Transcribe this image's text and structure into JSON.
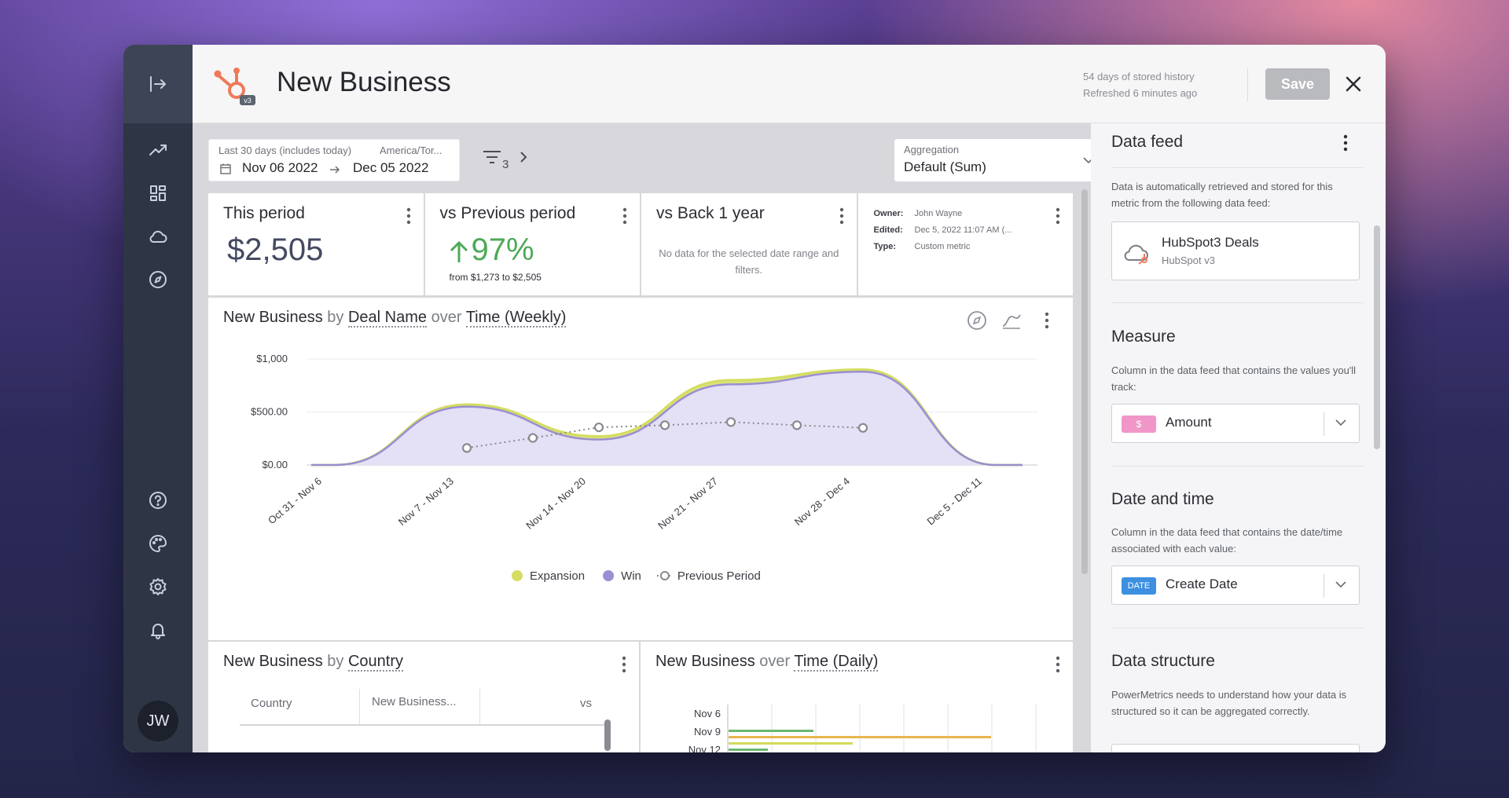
{
  "header": {
    "title": "New Business",
    "logo_badge": "v3",
    "history_line1": "54 days of stored history",
    "history_line2": "Refreshed 6 minutes ago",
    "save_label": "Save"
  },
  "user": {
    "initials": "JW"
  },
  "nav": {
    "top_icons": [
      "trend-icon",
      "dashboard-icon",
      "cloud-icon",
      "compass-icon"
    ],
    "bottom_icons": [
      "help-icon",
      "palette-icon",
      "settings-icon",
      "bell-icon"
    ]
  },
  "toolbar": {
    "date_label": "Last 30 days (includes today)",
    "timezone": "America/Tor...",
    "start_date": "Nov 06 2022",
    "end_date": "Dec 05 2022",
    "filter_count": "3",
    "aggregation_label": "Aggregation",
    "aggregation_value": "Default (Sum)"
  },
  "cards": {
    "this_period": {
      "title": "This period",
      "value": "$2,505"
    },
    "vs_previous": {
      "title": "vs Previous period",
      "value": "97%",
      "detail": "from $1,273 to $2,505"
    },
    "vs_year": {
      "title": "vs Back 1 year",
      "message": "No data for the selected date range and filters."
    },
    "meta": {
      "owner_label": "Owner:",
      "owner": "John Wayne",
      "edited_label": "Edited:",
      "edited": "Dec 5, 2022 11:07 AM (...",
      "type_label": "Type:",
      "type": "Custom metric"
    }
  },
  "main_chart": {
    "title_metric": "New Business",
    "title_by": "by",
    "title_dimension": "Deal Name",
    "title_over": "over",
    "title_time": "Time (Weekly)"
  },
  "chart_data": {
    "type": "area",
    "x": [
      "Oct 31 - Nov 6",
      "Nov 7 - Nov 13",
      "Nov 14 - Nov 20",
      "Nov 21 - Nov 27",
      "Nov 28 - Dec 4",
      "Dec 5 - Dec 11"
    ],
    "yticks": [
      "$1,000",
      "$500.00",
      "$0.00"
    ],
    "ylim": [
      0,
      1000
    ],
    "series": [
      {
        "name": "Expansion",
        "color": "#d5dd62",
        "values": [
          0,
          570,
          270,
          800,
          900,
          0
        ]
      },
      {
        "name": "Win",
        "color": "#9a8fd3",
        "values": [
          0,
          550,
          240,
          760,
          880,
          0
        ]
      }
    ],
    "previous_period": {
      "name": "Previous Period",
      "color": "#8a8a8f",
      "x_index": [
        1,
        1.5,
        2,
        2.5,
        3,
        3.5,
        4
      ],
      "values": [
        160,
        255,
        355,
        375,
        405,
        375,
        350
      ]
    },
    "grid": true,
    "legend": "bottom-center"
  },
  "country_panel": {
    "title_metric": "New Business",
    "title_by": "by",
    "title_dimension": "Country",
    "col_country": "Country",
    "col_value": "New Business...",
    "col_vs": "vs"
  },
  "daily_panel": {
    "title_metric": "New Business",
    "title_over": "over",
    "title_time": "Time (Daily)",
    "rows": [
      "Nov 6",
      "Nov 9",
      "Nov 12"
    ]
  },
  "sidebar": {
    "data_feed_heading": "Data feed",
    "data_feed_desc": "Data is automatically retrieved and stored for this metric from the following data feed:",
    "feed_name": "HubSpot3 Deals",
    "feed_source": "HubSpot v3",
    "measure_heading": "Measure",
    "measure_desc": "Column in the data feed that contains the values you'll track:",
    "measure_tag": "$",
    "measure_value": "Amount",
    "date_heading": "Date and time",
    "date_desc": "Column in the data feed that contains the date/time associated with each value:",
    "date_tag": "DATE",
    "date_value": "Create Date",
    "structure_heading": "Data structure",
    "structure_desc": "PowerMetrics needs to understand how your data is structured so it can be aggregated correctly."
  }
}
